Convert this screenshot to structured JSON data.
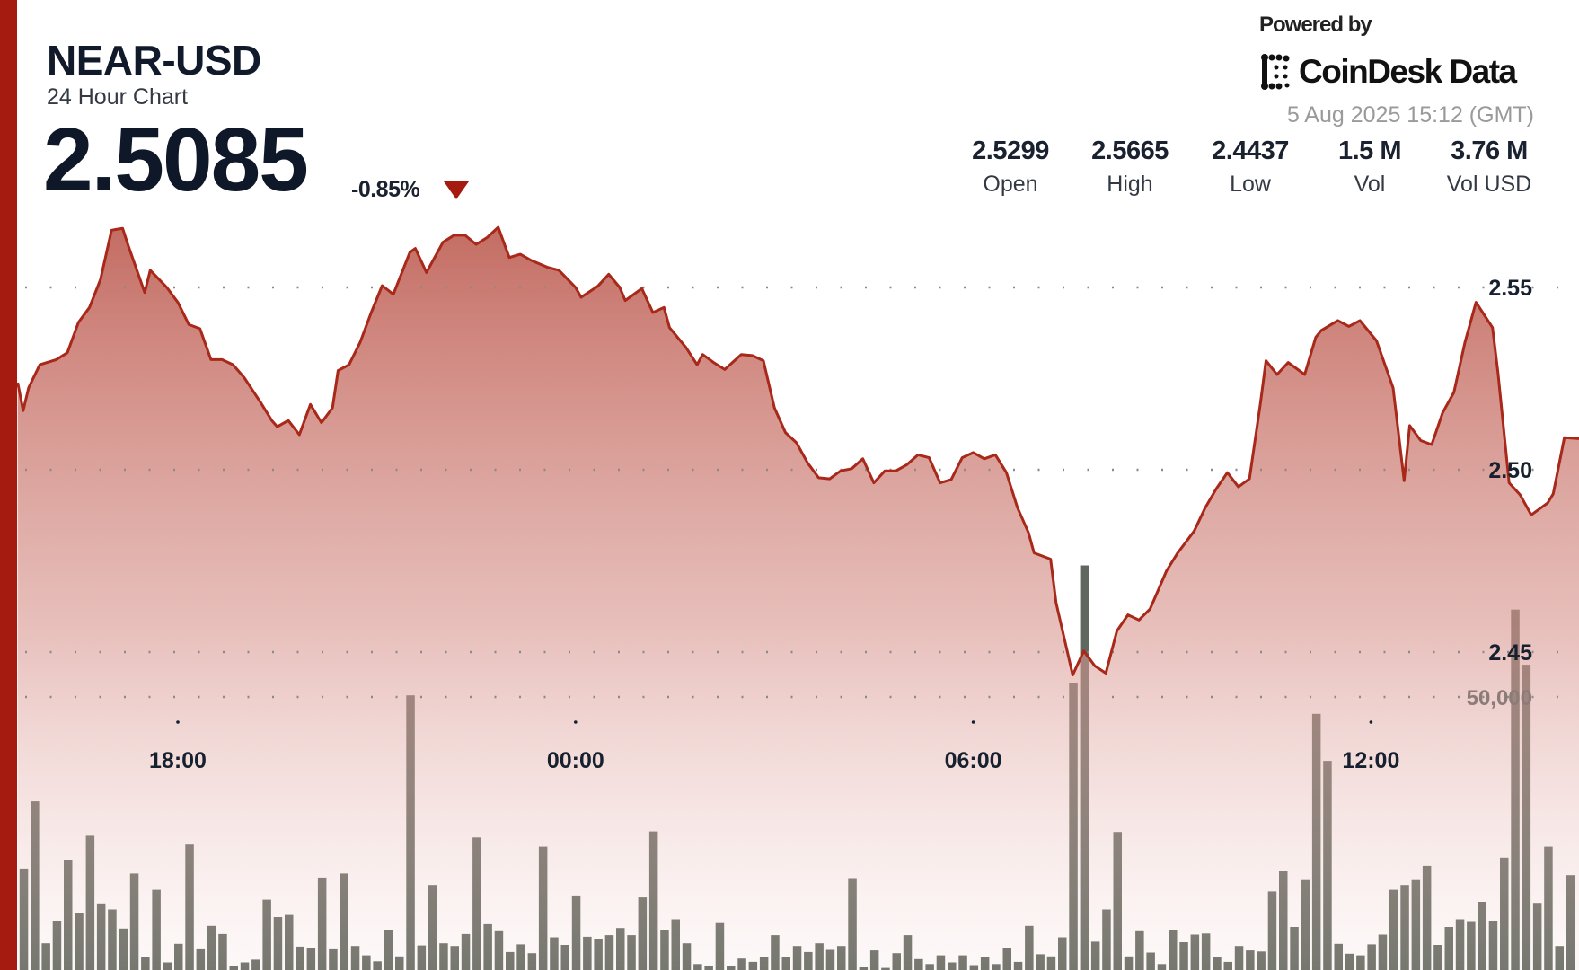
{
  "header": {
    "title": "NEAR-USD",
    "subtitle": "24 Hour Chart",
    "price": "2.5085",
    "change": "-0.85%",
    "change_direction": "down",
    "powered_by": "Powered by",
    "brand": "CoinDesk Data",
    "timestamp": "5 Aug 2025 15:12 (GMT)"
  },
  "stats": [
    {
      "label": "Open",
      "value": "2.5299"
    },
    {
      "label": "High",
      "value": "2.5665"
    },
    {
      "label": "Low",
      "value": "2.4437"
    },
    {
      "label": "Vol",
      "value": "1.5 M"
    },
    {
      "label": "Vol USD",
      "value": "3.76 M"
    }
  ],
  "colors": {
    "accent": "#a51b0f",
    "line": "#a8281a",
    "volume": "#4f574d",
    "text": "#111a2a"
  },
  "chart_data": {
    "type": "area",
    "grid": true,
    "y_ticks": [
      {
        "value": 2.55,
        "label": "2.55"
      },
      {
        "value": 2.5,
        "label": "2.50"
      },
      {
        "value": 2.45,
        "label": "2.45"
      }
    ],
    "volume_ticks": [
      {
        "value": 50000,
        "label": "50,000"
      }
    ],
    "x_ticks": [
      {
        "time": "18:00",
        "label": "18:00"
      },
      {
        "time": "00:00",
        "label": "00:00"
      },
      {
        "time": "06:00",
        "label": "06:00"
      },
      {
        "time": "12:00",
        "label": "12:00"
      }
    ],
    "price": [
      [
        "15:35",
        2.5239
      ],
      [
        "15:40",
        2.5162
      ],
      [
        "15:45",
        2.5225
      ],
      [
        "15:55",
        2.5288
      ],
      [
        "16:10",
        2.5302
      ],
      [
        "16:20",
        2.5321
      ],
      [
        "16:30",
        2.5404
      ],
      [
        "16:40",
        2.5445
      ],
      [
        "16:50",
        2.5522
      ],
      [
        "17:00",
        2.5657
      ],
      [
        "17:10",
        2.5662
      ],
      [
        "17:15",
        2.5615
      ],
      [
        "17:30",
        2.5486
      ],
      [
        "17:35",
        2.5547
      ],
      [
        "17:50",
        2.55
      ],
      [
        "18:00",
        2.5459
      ],
      [
        "18:10",
        2.5398
      ],
      [
        "18:20",
        2.5387
      ],
      [
        "18:30",
        2.5302
      ],
      [
        "18:40",
        2.5302
      ],
      [
        "18:50",
        2.5288
      ],
      [
        "19:00",
        2.5253
      ],
      [
        "19:15",
        2.5184
      ],
      [
        "19:25",
        2.5135
      ],
      [
        "19:30",
        2.5118
      ],
      [
        "19:40",
        2.5135
      ],
      [
        "19:50",
        2.5096
      ],
      [
        "20:00",
        2.5179
      ],
      [
        "20:10",
        2.5129
      ],
      [
        "20:20",
        2.517
      ],
      [
        "20:25",
        2.5272
      ],
      [
        "20:35",
        2.5288
      ],
      [
        "20:45",
        2.5349
      ],
      [
        "20:55",
        2.5431
      ],
      [
        "21:05",
        2.5505
      ],
      [
        "21:15",
        2.5481
      ],
      [
        "21:30",
        2.5596
      ],
      [
        "21:35",
        2.5607
      ],
      [
        "21:45",
        2.5541
      ],
      [
        "22:00",
        2.5624
      ],
      [
        "22:10",
        2.5643
      ],
      [
        "22:20",
        2.5643
      ],
      [
        "22:30",
        2.5618
      ],
      [
        "22:40",
        2.5637
      ],
      [
        "22:50",
        2.5665
      ],
      [
        "23:00",
        2.5582
      ],
      [
        "23:10",
        2.5591
      ],
      [
        "23:20",
        2.5574
      ],
      [
        "23:35",
        2.5555
      ],
      [
        "23:45",
        2.5547
      ],
      [
        "00:00",
        2.55
      ],
      [
        "00:05",
        2.5473
      ],
      [
        "00:20",
        2.5503
      ],
      [
        "00:30",
        2.5536
      ],
      [
        "00:40",
        2.55
      ],
      [
        "00:45",
        2.5464
      ],
      [
        "01:00",
        2.5497
      ],
      [
        "01:10",
        2.5431
      ],
      [
        "01:20",
        2.5445
      ],
      [
        "01:25",
        2.539
      ],
      [
        "01:40",
        2.5335
      ],
      [
        "01:50",
        2.5288
      ],
      [
        "01:55",
        2.5316
      ],
      [
        "02:05",
        2.5294
      ],
      [
        "02:15",
        2.5275
      ],
      [
        "02:30",
        2.5316
      ],
      [
        "02:40",
        2.5313
      ],
      [
        "02:50",
        2.5299
      ],
      [
        "03:00",
        2.517
      ],
      [
        "03:10",
        2.5102
      ],
      [
        "03:20",
        2.5074
      ],
      [
        "03:30",
        2.5019
      ],
      [
        "03:40",
        2.4978
      ],
      [
        "03:50",
        2.4975
      ],
      [
        "04:00",
        2.4997
      ],
      [
        "04:10",
        2.5003
      ],
      [
        "04:20",
        2.503
      ],
      [
        "04:30",
        2.4964
      ],
      [
        "04:40",
        2.4997
      ],
      [
        "04:50",
        2.4997
      ],
      [
        "05:00",
        2.5014
      ],
      [
        "05:10",
        2.5041
      ],
      [
        "05:20",
        2.5033
      ],
      [
        "05:30",
        2.4964
      ],
      [
        "05:40",
        2.4973
      ],
      [
        "05:50",
        2.5033
      ],
      [
        "06:00",
        2.5047
      ],
      [
        "06:10",
        2.503
      ],
      [
        "06:20",
        2.5041
      ],
      [
        "06:30",
        2.4992
      ],
      [
        "06:40",
        2.4896
      ],
      [
        "06:50",
        2.4827
      ],
      [
        "06:55",
        2.4772
      ],
      [
        "07:10",
        2.4755
      ],
      [
        "07:15",
        2.4635
      ],
      [
        "07:30",
        2.4437
      ],
      [
        "07:40",
        2.4503
      ],
      [
        "07:50",
        2.4462
      ],
      [
        "08:00",
        2.4442
      ],
      [
        "08:10",
        2.4558
      ],
      [
        "08:20",
        2.4602
      ],
      [
        "08:30",
        2.4588
      ],
      [
        "08:40",
        2.4618
      ],
      [
        "08:55",
        2.4723
      ],
      [
        "09:05",
        2.4772
      ],
      [
        "09:20",
        2.4832
      ],
      [
        "09:30",
        2.4896
      ],
      [
        "09:40",
        2.4948
      ],
      [
        "09:50",
        2.4992
      ],
      [
        "10:00",
        2.4953
      ],
      [
        "10:10",
        2.4975
      ],
      [
        "10:20",
        2.5184
      ],
      [
        "10:25",
        2.5299
      ],
      [
        "10:35",
        2.5261
      ],
      [
        "10:45",
        2.5294
      ],
      [
        "11:00",
        2.5261
      ],
      [
        "11:10",
        2.5363
      ],
      [
        "11:15",
        2.5382
      ],
      [
        "11:30",
        2.5409
      ],
      [
        "11:40",
        2.5393
      ],
      [
        "11:50",
        2.5409
      ],
      [
        "12:05",
        2.5354
      ],
      [
        "12:20",
        2.5225
      ],
      [
        "12:30",
        2.497
      ],
      [
        "12:35",
        2.5121
      ],
      [
        "12:45",
        2.508
      ],
      [
        "12:55",
        2.5069
      ],
      [
        "13:05",
        2.5157
      ],
      [
        "13:15",
        2.5212
      ],
      [
        "13:25",
        2.5349
      ],
      [
        "13:35",
        2.5459
      ],
      [
        "13:50",
        2.539
      ],
      [
        "13:55",
        2.5266
      ],
      [
        "14:05",
        2.4964
      ],
      [
        "14:15",
        2.4931
      ],
      [
        "14:25",
        2.4876
      ],
      [
        "14:40",
        2.4909
      ],
      [
        "14:45",
        2.4934
      ],
      [
        "14:55",
        2.5088
      ],
      [
        "15:10",
        2.5085
      ]
    ],
    "volume": [
      [
        "15:30",
        36700
      ],
      [
        "15:40",
        18600
      ],
      [
        "15:50",
        30900
      ],
      [
        "16:00",
        4900
      ],
      [
        "16:10",
        8900
      ],
      [
        "16:20",
        20100
      ],
      [
        "16:30",
        10400
      ],
      [
        "16:40",
        24600
      ],
      [
        "16:50",
        12200
      ],
      [
        "17:00",
        11100
      ],
      [
        "17:10",
        7600
      ],
      [
        "17:20",
        17700
      ],
      [
        "17:30",
        2400
      ],
      [
        "17:40",
        14700
      ],
      [
        "17:50",
        1400
      ],
      [
        "18:00",
        4800
      ],
      [
        "18:10",
        23000
      ],
      [
        "18:20",
        3800
      ],
      [
        "18:30",
        8100
      ],
      [
        "18:40",
        6600
      ],
      [
        "18:50",
        700
      ],
      [
        "19:00",
        1400
      ],
      [
        "19:10",
        1900
      ],
      [
        "19:20",
        12900
      ],
      [
        "19:30",
        9700
      ],
      [
        "19:40",
        10100
      ],
      [
        "19:50",
        4300
      ],
      [
        "20:00",
        4100
      ],
      [
        "20:10",
        16800
      ],
      [
        "20:20",
        3800
      ],
      [
        "20:30",
        17700
      ],
      [
        "20:40",
        4400
      ],
      [
        "20:50",
        2700
      ],
      [
        "21:00",
        1600
      ],
      [
        "21:10",
        7400
      ],
      [
        "21:20",
        2500
      ],
      [
        "21:30",
        50300
      ],
      [
        "21:40",
        4500
      ],
      [
        "21:50",
        15600
      ],
      [
        "22:00",
        4900
      ],
      [
        "22:10",
        4400
      ],
      [
        "22:20",
        6600
      ],
      [
        "22:30",
        24300
      ],
      [
        "22:40",
        8400
      ],
      [
        "22:50",
        7100
      ],
      [
        "23:00",
        3300
      ],
      [
        "23:10",
        4700
      ],
      [
        "23:20",
        3100
      ],
      [
        "23:30",
        22600
      ],
      [
        "23:40",
        6000
      ],
      [
        "23:50",
        4600
      ],
      [
        "00:00",
        13500
      ],
      [
        "00:10",
        6100
      ],
      [
        "00:20",
        5600
      ],
      [
        "00:30",
        6400
      ],
      [
        "00:40",
        7700
      ],
      [
        "00:50",
        6400
      ],
      [
        "01:00",
        13300
      ],
      [
        "01:10",
        25400
      ],
      [
        "01:20",
        7400
      ],
      [
        "01:30",
        9300
      ],
      [
        "01:40",
        4900
      ],
      [
        "01:50",
        1100
      ],
      [
        "02:00",
        800
      ],
      [
        "02:10",
        8600
      ],
      [
        "02:20",
        700
      ],
      [
        "02:30",
        2100
      ],
      [
        "02:40",
        1500
      ],
      [
        "02:50",
        2400
      ],
      [
        "03:00",
        6400
      ],
      [
        "03:10",
        2300
      ],
      [
        "03:20",
        4400
      ],
      [
        "03:30",
        3300
      ],
      [
        "03:40",
        4900
      ],
      [
        "03:50",
        3700
      ],
      [
        "04:00",
        4400
      ],
      [
        "04:10",
        16700
      ],
      [
        "04:20",
        500
      ],
      [
        "04:30",
        3600
      ],
      [
        "04:40",
        400
      ],
      [
        "04:50",
        3100
      ],
      [
        "05:00",
        6400
      ],
      [
        "05:10",
        2000
      ],
      [
        "05:20",
        1100
      ],
      [
        "05:30",
        2700
      ],
      [
        "05:40",
        1400
      ],
      [
        "05:50",
        2700
      ],
      [
        "06:00",
        900
      ],
      [
        "06:10",
        2400
      ],
      [
        "06:20",
        1100
      ],
      [
        "06:30",
        4100
      ],
      [
        "06:40",
        1500
      ],
      [
        "06:50",
        8100
      ],
      [
        "07:00",
        2900
      ],
      [
        "07:10",
        2500
      ],
      [
        "07:20",
        6000
      ],
      [
        "07:30",
        52600
      ],
      [
        "07:40",
        74100
      ],
      [
        "07:50",
        5200
      ],
      [
        "08:00",
        11100
      ],
      [
        "08:10",
        25300
      ],
      [
        "08:20",
        2500
      ],
      [
        "08:30",
        7100
      ],
      [
        "08:40",
        3200
      ],
      [
        "08:50",
        1100
      ],
      [
        "09:00",
        7300
      ],
      [
        "09:10",
        5100
      ],
      [
        "09:20",
        6500
      ],
      [
        "09:30",
        6700
      ],
      [
        "09:40",
        2300
      ],
      [
        "09:50",
        1500
      ],
      [
        "10:00",
        4400
      ],
      [
        "10:10",
        3600
      ],
      [
        "10:20",
        3400
      ],
      [
        "10:30",
        14400
      ],
      [
        "10:40",
        18100
      ],
      [
        "10:50",
        7900
      ],
      [
        "11:00",
        16500
      ],
      [
        "11:10",
        46900
      ],
      [
        "11:20",
        38300
      ],
      [
        "11:30",
        4800
      ],
      [
        "11:40",
        3000
      ],
      [
        "11:50",
        2700
      ],
      [
        "12:00",
        4700
      ],
      [
        "12:10",
        6500
      ],
      [
        "12:20",
        14700
      ],
      [
        "12:30",
        15600
      ],
      [
        "12:40",
        16500
      ],
      [
        "12:50",
        19100
      ],
      [
        "13:00",
        4600
      ],
      [
        "13:10",
        7900
      ],
      [
        "13:20",
        9300
      ],
      [
        "13:30",
        8800
      ],
      [
        "13:40",
        12500
      ],
      [
        "13:50",
        9000
      ],
      [
        "14:00",
        20600
      ],
      [
        "14:10",
        66000
      ],
      [
        "14:20",
        55900
      ],
      [
        "14:30",
        12300
      ],
      [
        "14:40",
        22600
      ],
      [
        "14:50",
        4400
      ],
      [
        "15:00",
        17400
      ]
    ]
  }
}
